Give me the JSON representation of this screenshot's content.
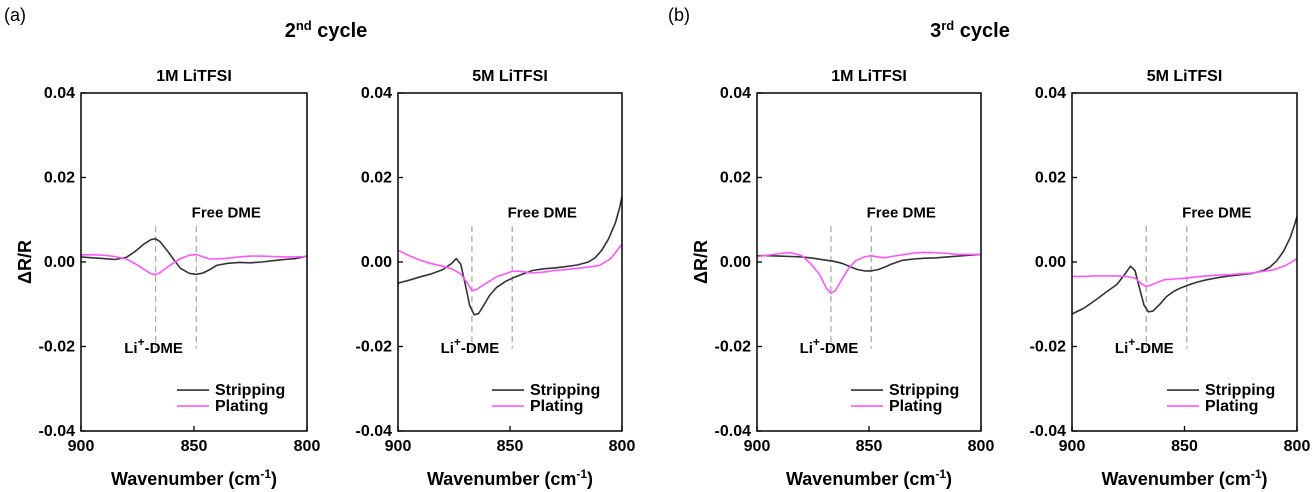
{
  "figure": {
    "groups": [
      {
        "letter": "(a)",
        "cycle": {
          "base": "2",
          "sup": "nd",
          "rest": " cycle"
        }
      },
      {
        "letter": "(b)",
        "cycle": {
          "base": "3",
          "sup": "rd",
          "rest": " cycle"
        }
      }
    ],
    "colors": {
      "stripping": "#333333",
      "plating": "#ff55ff",
      "marker": "#aaaaaa"
    }
  },
  "chart_data": [
    {
      "type": "line",
      "title": "1M LiTFSI",
      "xlabel": {
        "base": "Wavenumber (cm",
        "sup": "-1",
        "rest": ")"
      },
      "ylabel": "ΔR/R",
      "xlim": [
        900,
        800
      ],
      "ylim": [
        -0.04,
        0.04
      ],
      "xticks": [
        "900",
        "850",
        "800"
      ],
      "yticks": [
        "0.04",
        "0.02",
        "0.00",
        "-0.02",
        "-0.04"
      ],
      "legend": "bottom-right",
      "markers": [
        {
          "x": 867,
          "label_base": "Li",
          "label_sup": "+",
          "label_rest": "-DME"
        },
        {
          "x": 849,
          "label_base": "Free DME",
          "label_sup": "",
          "label_rest": ""
        }
      ],
      "series": [
        {
          "name": "Stripping",
          "x": [
            900,
            895,
            890,
            885,
            880,
            876,
            872,
            869,
            867,
            865,
            862,
            859,
            856,
            852,
            849,
            846,
            843,
            840,
            835,
            830,
            825,
            820,
            815,
            810,
            805,
            800
          ],
          "y": [
            0.0012,
            0.001,
            0.0008,
            0.0006,
            0.0011,
            0.0025,
            0.0043,
            0.0053,
            0.0055,
            0.0048,
            0.0028,
            0.0006,
            -0.0015,
            -0.0027,
            -0.0029,
            -0.0026,
            -0.0018,
            -0.0008,
            -0.0003,
            -0.0001,
            -0.0002,
            0.0,
            0.0003,
            0.0006,
            0.0008,
            0.0014
          ]
        },
        {
          "name": "Plating",
          "x": [
            900,
            895,
            890,
            885,
            880,
            876,
            872,
            869,
            867,
            865,
            862,
            859,
            856,
            852,
            849,
            846,
            843,
            840,
            835,
            830,
            825,
            820,
            815,
            810,
            805,
            800
          ],
          "y": [
            0.0017,
            0.0017,
            0.0016,
            0.0013,
            0.0007,
            -0.0004,
            -0.0018,
            -0.0028,
            -0.003,
            -0.0025,
            -0.0013,
            -0.0002,
            0.0008,
            0.0016,
            0.0018,
            0.0012,
            0.0007,
            0.0007,
            0.0009,
            0.0012,
            0.0014,
            0.0014,
            0.0013,
            0.0012,
            0.0012,
            0.0013
          ]
        }
      ]
    },
    {
      "type": "line",
      "title": "5M LiTFSI",
      "xlabel": {
        "base": "Wavenumber (cm",
        "sup": "-1",
        "rest": ")"
      },
      "ylabel": "",
      "xlim": [
        900,
        800
      ],
      "ylim": [
        -0.04,
        0.04
      ],
      "xticks": [
        "900",
        "850",
        "800"
      ],
      "yticks": [
        "0.04",
        "0.02",
        "0.00",
        "-0.02",
        "-0.04"
      ],
      "legend": "bottom-right",
      "markers": [
        {
          "x": 867,
          "label_base": "Li",
          "label_sup": "+",
          "label_rest": "-DME"
        },
        {
          "x": 849,
          "label_base": "Free DME",
          "label_sup": "",
          "label_rest": ""
        }
      ],
      "series": [
        {
          "name": "Stripping",
          "x": [
            900,
            895,
            890,
            885,
            880,
            876,
            874,
            872,
            870,
            868,
            866,
            864,
            862,
            859,
            856,
            852,
            848,
            844,
            840,
            835,
            830,
            825,
            820,
            815,
            812,
            809,
            806,
            803,
            801,
            800
          ],
          "y": [
            -0.005,
            -0.0043,
            -0.0035,
            -0.0028,
            -0.0018,
            -0.0003,
            0.0008,
            -0.0005,
            -0.0052,
            -0.0103,
            -0.0125,
            -0.0122,
            -0.0105,
            -0.0078,
            -0.006,
            -0.0046,
            -0.0036,
            -0.0028,
            -0.002,
            -0.0016,
            -0.0014,
            -0.0011,
            -0.0007,
            0.0,
            0.001,
            0.0028,
            0.0055,
            0.0092,
            0.013,
            0.0155
          ]
        },
        {
          "name": "Plating",
          "x": [
            900,
            895,
            890,
            885,
            880,
            876,
            872,
            869,
            867,
            865,
            862,
            859,
            856,
            852,
            849,
            846,
            843,
            840,
            835,
            830,
            825,
            820,
            815,
            810,
            805,
            800
          ],
          "y": [
            0.0028,
            0.0015,
            0.0004,
            -0.0004,
            -0.001,
            -0.0016,
            -0.0028,
            -0.005,
            -0.0068,
            -0.0065,
            -0.0055,
            -0.0045,
            -0.0035,
            -0.0028,
            -0.0022,
            -0.0022,
            -0.0024,
            -0.0026,
            -0.0024,
            -0.002,
            -0.0018,
            -0.0015,
            -0.0012,
            -0.0008,
            0.0008,
            0.0042
          ]
        }
      ]
    },
    {
      "type": "line",
      "title": "1M LiTFSI",
      "xlabel": {
        "base": "Wavenumber (cm",
        "sup": "-1",
        "rest": ")"
      },
      "ylabel": "ΔR/R",
      "xlim": [
        900,
        800
      ],
      "ylim": [
        -0.04,
        0.04
      ],
      "xticks": [
        "900",
        "850",
        "800"
      ],
      "yticks": [
        "0.04",
        "0.02",
        "0.00",
        "-0.02",
        "-0.04"
      ],
      "legend": "bottom-right",
      "markers": [
        {
          "x": 867,
          "label_base": "Li",
          "label_sup": "+",
          "label_rest": "-DME"
        },
        {
          "x": 849,
          "label_base": "Free DME",
          "label_sup": "",
          "label_rest": ""
        }
      ],
      "series": [
        {
          "name": "Stripping",
          "x": [
            900,
            895,
            890,
            885,
            880,
            875,
            870,
            866,
            862,
            858,
            855,
            852,
            849,
            846,
            843,
            840,
            835,
            830,
            825,
            820,
            815,
            810,
            805,
            800
          ],
          "y": [
            0.0015,
            0.0015,
            0.0014,
            0.0013,
            0.0012,
            0.0009,
            0.0005,
            0.0002,
            -0.0003,
            -0.0012,
            -0.0018,
            -0.0021,
            -0.0021,
            -0.0018,
            -0.0012,
            -0.0005,
            0.0004,
            0.0007,
            0.0009,
            0.001,
            0.0012,
            0.0014,
            0.0016,
            0.0018
          ]
        },
        {
          "name": "Plating",
          "x": [
            900,
            895,
            890,
            885,
            880,
            876,
            872,
            869,
            867,
            865,
            862,
            859,
            856,
            852,
            849,
            846,
            843,
            840,
            835,
            830,
            825,
            820,
            815,
            810,
            805,
            800
          ],
          "y": [
            0.0013,
            0.0016,
            0.002,
            0.0022,
            0.0015,
            -0.0004,
            -0.003,
            -0.0062,
            -0.0074,
            -0.0068,
            -0.004,
            -0.0015,
            0.0003,
            0.0012,
            0.0015,
            0.0012,
            0.001,
            0.0013,
            0.0017,
            0.0021,
            0.0023,
            0.0022,
            0.002,
            0.0018,
            0.0018,
            0.0018
          ]
        }
      ]
    },
    {
      "type": "line",
      "title": "5M LiTFSI",
      "xlabel": {
        "base": "Wavenumber (cm",
        "sup": "-1",
        "rest": ")"
      },
      "ylabel": "",
      "xlim": [
        900,
        800
      ],
      "ylim": [
        -0.04,
        0.04
      ],
      "xticks": [
        "900",
        "850",
        "800"
      ],
      "yticks": [
        "0.04",
        "0.02",
        "0.00",
        "-0.02",
        "-0.04"
      ],
      "legend": "bottom-right",
      "markers": [
        {
          "x": 867,
          "label_base": "Li",
          "label_sup": "+",
          "label_rest": "-DME"
        },
        {
          "x": 849,
          "label_base": "Free DME",
          "label_sup": "",
          "label_rest": ""
        }
      ],
      "series": [
        {
          "name": "Stripping",
          "x": [
            900,
            895,
            890,
            885,
            880,
            876,
            874,
            872,
            870,
            868,
            866,
            864,
            861,
            858,
            855,
            852,
            848,
            844,
            840,
            835,
            830,
            825,
            820,
            815,
            812,
            809,
            806,
            803,
            801,
            800
          ],
          "y": [
            -0.0123,
            -0.011,
            -0.0092,
            -0.0072,
            -0.0053,
            -0.0025,
            -0.001,
            -0.002,
            -0.0062,
            -0.0102,
            -0.0118,
            -0.0116,
            -0.01,
            -0.0082,
            -0.007,
            -0.0062,
            -0.0054,
            -0.0047,
            -0.0042,
            -0.0037,
            -0.0033,
            -0.003,
            -0.0027,
            -0.002,
            -0.0012,
            0.0003,
            0.0025,
            0.0058,
            0.009,
            0.0108
          ]
        },
        {
          "name": "Plating",
          "x": [
            900,
            895,
            890,
            885,
            880,
            876,
            872,
            869,
            867,
            865,
            862,
            859,
            856,
            852,
            849,
            846,
            843,
            840,
            835,
            830,
            825,
            820,
            815,
            810,
            805,
            800
          ],
          "y": [
            -0.0034,
            -0.0034,
            -0.0033,
            -0.0033,
            -0.0033,
            -0.0034,
            -0.0038,
            -0.0052,
            -0.0058,
            -0.0055,
            -0.0048,
            -0.0042,
            -0.0041,
            -0.0039,
            -0.0038,
            -0.0036,
            -0.0034,
            -0.0033,
            -0.0031,
            -0.003,
            -0.0028,
            -0.0026,
            -0.0022,
            -0.0018,
            -0.0008,
            0.0008
          ]
        }
      ]
    }
  ]
}
